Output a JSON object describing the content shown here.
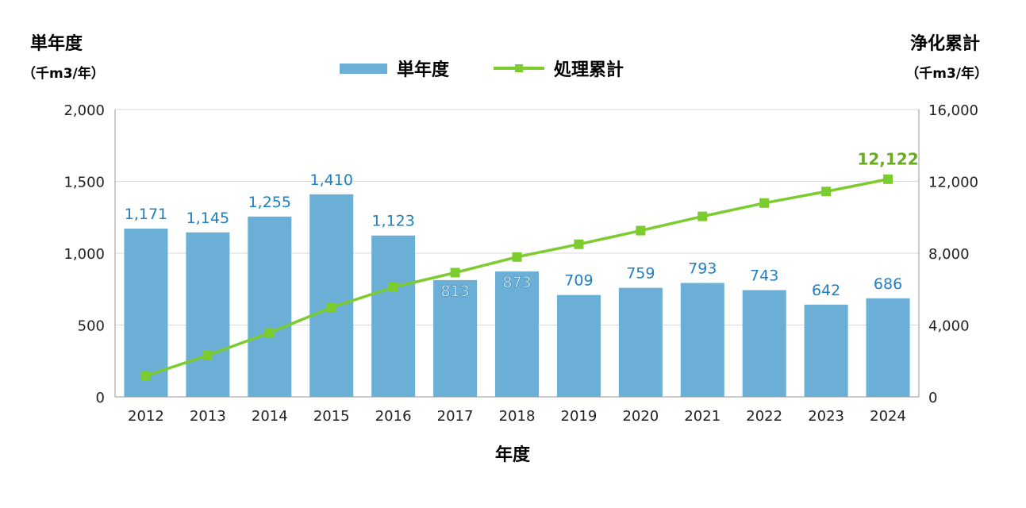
{
  "chart_data": {
    "type": "bar+line",
    "xlabel": "年度",
    "categories": [
      "2012",
      "2013",
      "2014",
      "2015",
      "2016",
      "2017",
      "2018",
      "2019",
      "2020",
      "2021",
      "2022",
      "2023",
      "2024"
    ],
    "left_axis": {
      "title": "単年度",
      "unit": "（千m3/年）",
      "ylim": [
        0,
        2000
      ],
      "ticks": [
        "0",
        "500",
        "1,000",
        "1,500",
        "2,000"
      ],
      "tick_values": [
        0,
        500,
        1000,
        1500,
        2000
      ]
    },
    "right_axis": {
      "title": "浄化累計",
      "unit": "（千m3/年）",
      "ylim": [
        0,
        16000
      ],
      "ticks": [
        "0",
        "4,000",
        "8,000",
        "12,000",
        "16,000"
      ],
      "tick_values": [
        0,
        4000,
        8000,
        12000,
        16000
      ]
    },
    "grid": true,
    "legend": "top-center",
    "series": [
      {
        "name": "単年度",
        "type": "bar",
        "axis": "left",
        "color": "#6baed6",
        "label_color": "#1f7fc4",
        "values": [
          1171,
          1145,
          1255,
          1410,
          1123,
          813,
          873,
          709,
          759,
          793,
          743,
          642,
          686
        ],
        "labels": [
          "1,171",
          "1,145",
          "1,255",
          "1,410",
          "1,123",
          "813",
          "873",
          "709",
          "759",
          "793",
          "743",
          "642",
          "686"
        ]
      },
      {
        "name": "処理累計",
        "type": "line",
        "axis": "right",
        "color": "#7ccb2f",
        "label_color": "#6aab1f",
        "values": [
          1171,
          2316,
          3571,
          4981,
          6104,
          6917,
          7790,
          8499,
          9258,
          10051,
          10794,
          11436,
          12122
        ],
        "end_label": "12,122"
      }
    ]
  }
}
